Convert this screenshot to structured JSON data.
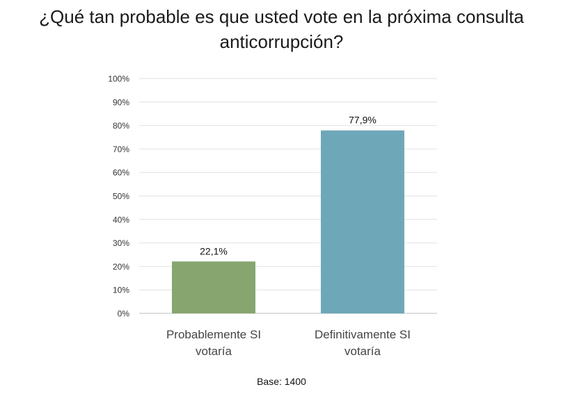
{
  "chart_data": {
    "type": "bar",
    "title_lines": [
      "¿Qué tan probable es que usted vote en la próxima consulta",
      "anticorrupción?"
    ],
    "categories": [
      [
        "Probablemente SI",
        "votaría"
      ],
      [
        "Definitivamente SI",
        "votaría"
      ]
    ],
    "values": [
      22.1,
      77.9
    ],
    "data_labels": [
      "22,1%",
      "77,9%"
    ],
    "bar_colors": [
      "#87a56e",
      "#6ea8b8"
    ],
    "ylim": [
      0,
      100
    ],
    "yticks": [
      0,
      10,
      20,
      30,
      40,
      50,
      60,
      70,
      80,
      90,
      100
    ],
    "ytick_labels": [
      "0%",
      "10%",
      "20%",
      "30%",
      "40%",
      "50%",
      "60%",
      "70%",
      "80%",
      "90%",
      "100%"
    ],
    "grid": true,
    "xlabel": "",
    "ylabel": "",
    "footnote": "Base: 1400"
  }
}
